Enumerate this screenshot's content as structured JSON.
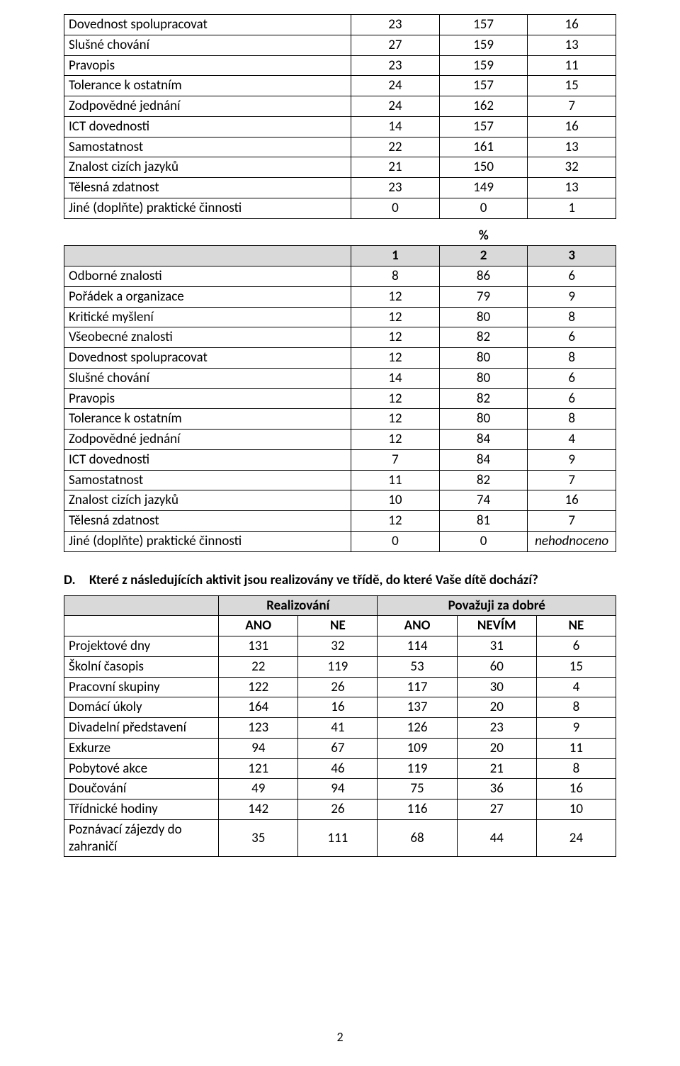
{
  "colors": {
    "header_bg": "#d9d9d9",
    "border": "#000000",
    "text": "#000000",
    "background": "#ffffff"
  },
  "font": {
    "family": "Calibri",
    "body_size_pt": 14,
    "heading_bold": true
  },
  "table1": {
    "rows": [
      {
        "label": "Dovednost spolupracovat",
        "v": [
          "23",
          "157",
          "16"
        ]
      },
      {
        "label": "Slušné chování",
        "v": [
          "27",
          "159",
          "13"
        ]
      },
      {
        "label": "Pravopis",
        "v": [
          "23",
          "159",
          "11"
        ]
      },
      {
        "label": "Tolerance k ostatním",
        "v": [
          "24",
          "157",
          "15"
        ]
      },
      {
        "label": "Zodpovědné jednání",
        "v": [
          "24",
          "162",
          "7"
        ]
      },
      {
        "label": "ICT dovednosti",
        "v": [
          "14",
          "157",
          "16"
        ]
      },
      {
        "label": "Samostatnost",
        "v": [
          "22",
          "161",
          "13"
        ]
      },
      {
        "label": "Znalost cizích jazyků",
        "v": [
          "21",
          "150",
          "32"
        ]
      },
      {
        "label": "Tělesná zdatnost",
        "v": [
          "23",
          "149",
          "13"
        ]
      },
      {
        "label": "Jiné (doplňte) praktické činnosti",
        "v": [
          "0",
          "0",
          "1"
        ]
      }
    ]
  },
  "percent_symbol": "%",
  "table2": {
    "headers": [
      "1",
      "2",
      "3"
    ],
    "rows": [
      {
        "label": "Odborné znalosti",
        "v": [
          "8",
          "86",
          "6"
        ]
      },
      {
        "label": "Pořádek a organizace",
        "v": [
          "12",
          "79",
          "9"
        ]
      },
      {
        "label": "Kritické myšlení",
        "v": [
          "12",
          "80",
          "8"
        ]
      },
      {
        "label": "Všeobecné znalosti",
        "v": [
          "12",
          "82",
          "6"
        ]
      },
      {
        "label": "Dovednost spolupracovat",
        "v": [
          "12",
          "80",
          "8"
        ]
      },
      {
        "label": "Slušné chování",
        "v": [
          "14",
          "80",
          "6"
        ]
      },
      {
        "label": "Pravopis",
        "v": [
          "12",
          "82",
          "6"
        ]
      },
      {
        "label": "Tolerance k ostatním",
        "v": [
          "12",
          "80",
          "8"
        ]
      },
      {
        "label": "Zodpovědné jednání",
        "v": [
          "12",
          "84",
          "4"
        ]
      },
      {
        "label": "ICT dovednosti",
        "v": [
          "7",
          "84",
          "9"
        ]
      },
      {
        "label": "Samostatnost",
        "v": [
          "11",
          "82",
          "7"
        ]
      },
      {
        "label": "Znalost cizích jazyků",
        "v": [
          "10",
          "74",
          "16"
        ]
      },
      {
        "label": "Tělesná zdatnost",
        "v": [
          "12",
          "81",
          "7"
        ]
      },
      {
        "label": "Jiné (doplňte) praktické činnosti",
        "v": [
          "0",
          "0",
          "nehodnoceno"
        ],
        "last_italic": true
      }
    ]
  },
  "sectionD": {
    "marker": "D.",
    "title": "Které z následujících aktivit jsou realizovány ve třídě, do které Vaše dítě dochází?"
  },
  "table3": {
    "group_headers": [
      "Realizování",
      "Považuji za dobré"
    ],
    "sub_headers": [
      "ANO",
      "NE",
      "ANO",
      "NEVÍM",
      "NE"
    ],
    "rows": [
      {
        "label": "Projektové dny",
        "v": [
          "131",
          "32",
          "114",
          "31",
          "6"
        ]
      },
      {
        "label": "Školní časopis",
        "v": [
          "22",
          "119",
          "53",
          "60",
          "15"
        ]
      },
      {
        "label": "Pracovní skupiny",
        "v": [
          "122",
          "26",
          "117",
          "30",
          "4"
        ]
      },
      {
        "label": "Domácí úkoly",
        "v": [
          "164",
          "16",
          "137",
          "20",
          "8"
        ]
      },
      {
        "label": "Divadelní představení",
        "v": [
          "123",
          "41",
          "126",
          "23",
          "9"
        ]
      },
      {
        "label": "Exkurze",
        "v": [
          "94",
          "67",
          "109",
          "20",
          "11"
        ]
      },
      {
        "label": "Pobytové akce",
        "v": [
          "121",
          "46",
          "119",
          "21",
          "8"
        ]
      },
      {
        "label": "Doučování",
        "v": [
          "49",
          "94",
          "75",
          "36",
          "16"
        ]
      },
      {
        "label": "Třídnické hodiny",
        "v": [
          "142",
          "26",
          "116",
          "27",
          "10"
        ]
      },
      {
        "label": "Poznávací zájezdy do zahraničí",
        "v": [
          "35",
          "111",
          "68",
          "44",
          "24"
        ]
      }
    ]
  },
  "page_number": "2"
}
